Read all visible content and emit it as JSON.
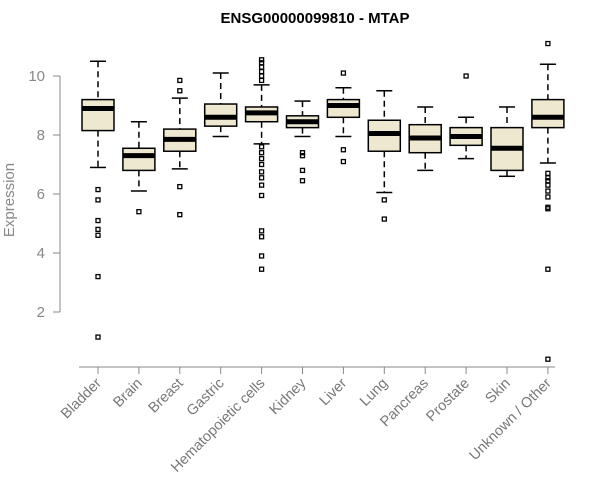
{
  "chart_data": {
    "type": "box",
    "title": "ENSG00000099810 - MTAP",
    "xlabel": "",
    "ylabel": "Expression",
    "yticks": [
      2,
      4,
      6,
      8,
      10
    ],
    "ylim": [
      0.3,
      11.3
    ],
    "grid": false,
    "box_fill": "#EEE8D0",
    "categories": [
      "Bladder",
      "Brain",
      "Breast",
      "Gastric",
      "Hematopoietic cells",
      "Kidney",
      "Liver",
      "Lung",
      "Pancreas",
      "Prostate",
      "Skin",
      "Unknown / Other"
    ],
    "boxes": [
      {
        "min": 6.9,
        "q1": 8.15,
        "median": 8.9,
        "q3": 9.2,
        "max": 10.5,
        "outliers": [
          1.15,
          3.2,
          4.6,
          4.8,
          5.1,
          5.8,
          6.15
        ]
      },
      {
        "min": 6.1,
        "q1": 6.8,
        "median": 7.3,
        "q3": 7.55,
        "max": 8.45,
        "outliers": [
          5.4
        ]
      },
      {
        "min": 6.85,
        "q1": 7.45,
        "median": 7.85,
        "q3": 8.2,
        "max": 9.25,
        "outliers": [
          5.3,
          6.25,
          9.5,
          9.85
        ]
      },
      {
        "min": 7.95,
        "q1": 8.3,
        "median": 8.6,
        "q3": 9.05,
        "max": 10.1,
        "outliers": []
      },
      {
        "min": 7.7,
        "q1": 8.45,
        "median": 8.75,
        "q3": 8.95,
        "max": 9.7,
        "outliers": [
          3.45,
          3.9,
          4.55,
          4.75,
          5.95,
          6.3,
          6.55,
          6.75,
          7.0,
          7.2,
          7.4,
          7.6,
          9.85,
          10.0,
          10.15,
          10.3,
          10.45,
          10.55
        ]
      },
      {
        "min": 7.95,
        "q1": 8.25,
        "median": 8.45,
        "q3": 8.65,
        "max": 9.15,
        "outliers": [
          6.45,
          6.8,
          7.3,
          7.4
        ]
      },
      {
        "min": 7.95,
        "q1": 8.6,
        "median": 9.0,
        "q3": 9.2,
        "max": 9.6,
        "outliers": [
          7.1,
          7.5,
          10.1
        ]
      },
      {
        "min": 6.05,
        "q1": 7.45,
        "median": 8.05,
        "q3": 8.5,
        "max": 9.5,
        "outliers": [
          5.15,
          5.8
        ]
      },
      {
        "min": 6.8,
        "q1": 7.4,
        "median": 7.9,
        "q3": 8.35,
        "max": 8.95,
        "outliers": []
      },
      {
        "min": 7.2,
        "q1": 7.65,
        "median": 7.95,
        "q3": 8.25,
        "max": 8.6,
        "outliers": [
          10.0
        ]
      },
      {
        "min": 6.6,
        "q1": 6.8,
        "median": 7.55,
        "q3": 8.25,
        "max": 8.95,
        "outliers": []
      },
      {
        "min": 7.05,
        "q1": 8.25,
        "median": 8.6,
        "q3": 9.2,
        "max": 10.4,
        "outliers": [
          0.4,
          3.45,
          5.5,
          5.55,
          5.9,
          6.1,
          6.3,
          6.45,
          6.55,
          6.7,
          11.1
        ]
      }
    ]
  }
}
